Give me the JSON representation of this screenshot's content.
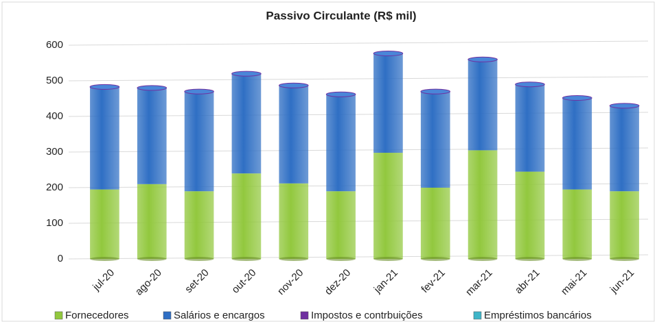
{
  "chart_data": {
    "type": "bar",
    "stacked": true,
    "title": "Passivo Circulante (R$ mil)",
    "categories": [
      "jul-20",
      "ago-20",
      "set-20",
      "out-20",
      "nov-20",
      "dez-20",
      "jan-21",
      "fev-21",
      "mar-21",
      "abr-21",
      "mai-21",
      "jun-21"
    ],
    "series": [
      {
        "name": "Fornecedores",
        "color": "#92c83e",
        "values": [
          195,
          210,
          190,
          240,
          212,
          190,
          298,
          200,
          305,
          245,
          195,
          190
        ]
      },
      {
        "name": "Salários e encargos",
        "color": "#2f6fc4",
        "values": [
          286,
          268,
          278,
          278,
          273,
          270,
          277,
          268,
          253,
          243,
          255,
          238
        ]
      },
      {
        "name": "Impostos e contrbuições",
        "color": "#7030a0",
        "values": [
          2,
          2,
          2,
          2,
          2,
          2,
          2,
          2,
          2,
          2,
          2,
          2
        ]
      },
      {
        "name": "Empréstimos bancários",
        "color": "#3fb5c8",
        "values": [
          0,
          0,
          0,
          0,
          0,
          0,
          0,
          0,
          0,
          0,
          0,
          0
        ]
      }
    ],
    "ylim": [
      0,
      600
    ],
    "yticks": [
      0,
      100,
      200,
      300,
      400,
      500,
      600
    ],
    "grid": true,
    "legend": "bottom"
  }
}
